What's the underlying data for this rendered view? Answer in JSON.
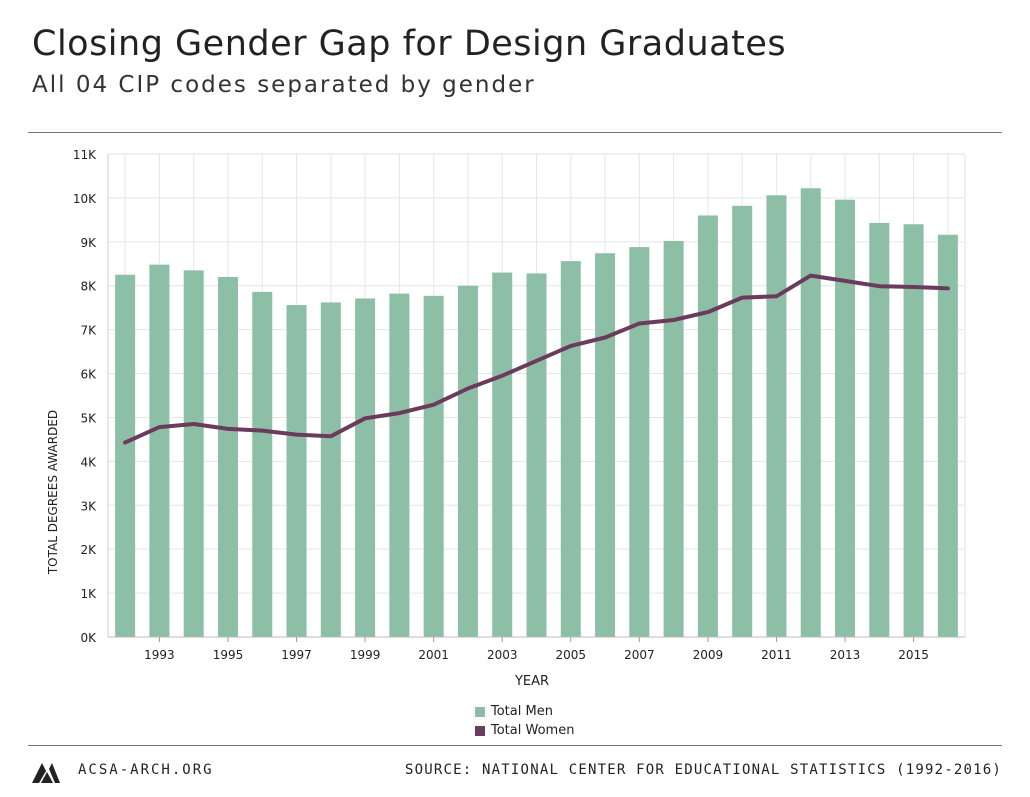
{
  "header": {
    "title": "Closing Gender Gap for Design Graduates",
    "subtitle": "All 04 CIP codes separated by gender"
  },
  "footer": {
    "site": "ACSA-ARCH.ORG",
    "source": "SOURCE: NATIONAL CENTER FOR EDUCATIONAL STATISTICS (1992-2016)",
    "logo_icon": "acsa-logo-icon"
  },
  "colors": {
    "men": "#8cbfa6",
    "women": "#6b3b5e",
    "grid": "#e6e6e6",
    "axis": "#999999"
  },
  "chart_data": {
    "type": "bar",
    "x": [
      1992,
      1993,
      1994,
      1995,
      1996,
      1997,
      1998,
      1999,
      2000,
      2001,
      2002,
      2003,
      2004,
      2005,
      2006,
      2007,
      2008,
      2009,
      2010,
      2011,
      2012,
      2013,
      2014,
      2015,
      2016
    ],
    "x_tick_labels": [
      "1993",
      "1995",
      "1997",
      "1999",
      "2001",
      "2003",
      "2005",
      "2007",
      "2009",
      "2011",
      "2013",
      "2015"
    ],
    "y_tick_labels": [
      "0K",
      "1K",
      "2K",
      "3K",
      "4K",
      "5K",
      "6K",
      "7K",
      "8K",
      "9K",
      "10K",
      "11K"
    ],
    "xlabel": "YEAR",
    "ylabel": "TOTAL DEGREES AWARDED",
    "ylim": [
      0,
      11000
    ],
    "grid": true,
    "legend_position": "bottom",
    "series": [
      {
        "name": "Total Men",
        "type": "bar",
        "values": [
          8250,
          8480,
          8350,
          8200,
          7860,
          7560,
          7620,
          7710,
          7820,
          7770,
          8000,
          8300,
          8280,
          8560,
          8740,
          8880,
          9020,
          9600,
          9820,
          10060,
          10220,
          9960,
          9430,
          9400,
          9160
        ]
      },
      {
        "name": "Total Women",
        "type": "line",
        "values": [
          4430,
          4780,
          4850,
          4740,
          4700,
          4610,
          4570,
          4980,
          5100,
          5290,
          5660,
          5950,
          6290,
          6630,
          6820,
          7140,
          7220,
          7400,
          7730,
          7760,
          8230,
          8110,
          7990,
          7970,
          7940
        ]
      }
    ]
  }
}
